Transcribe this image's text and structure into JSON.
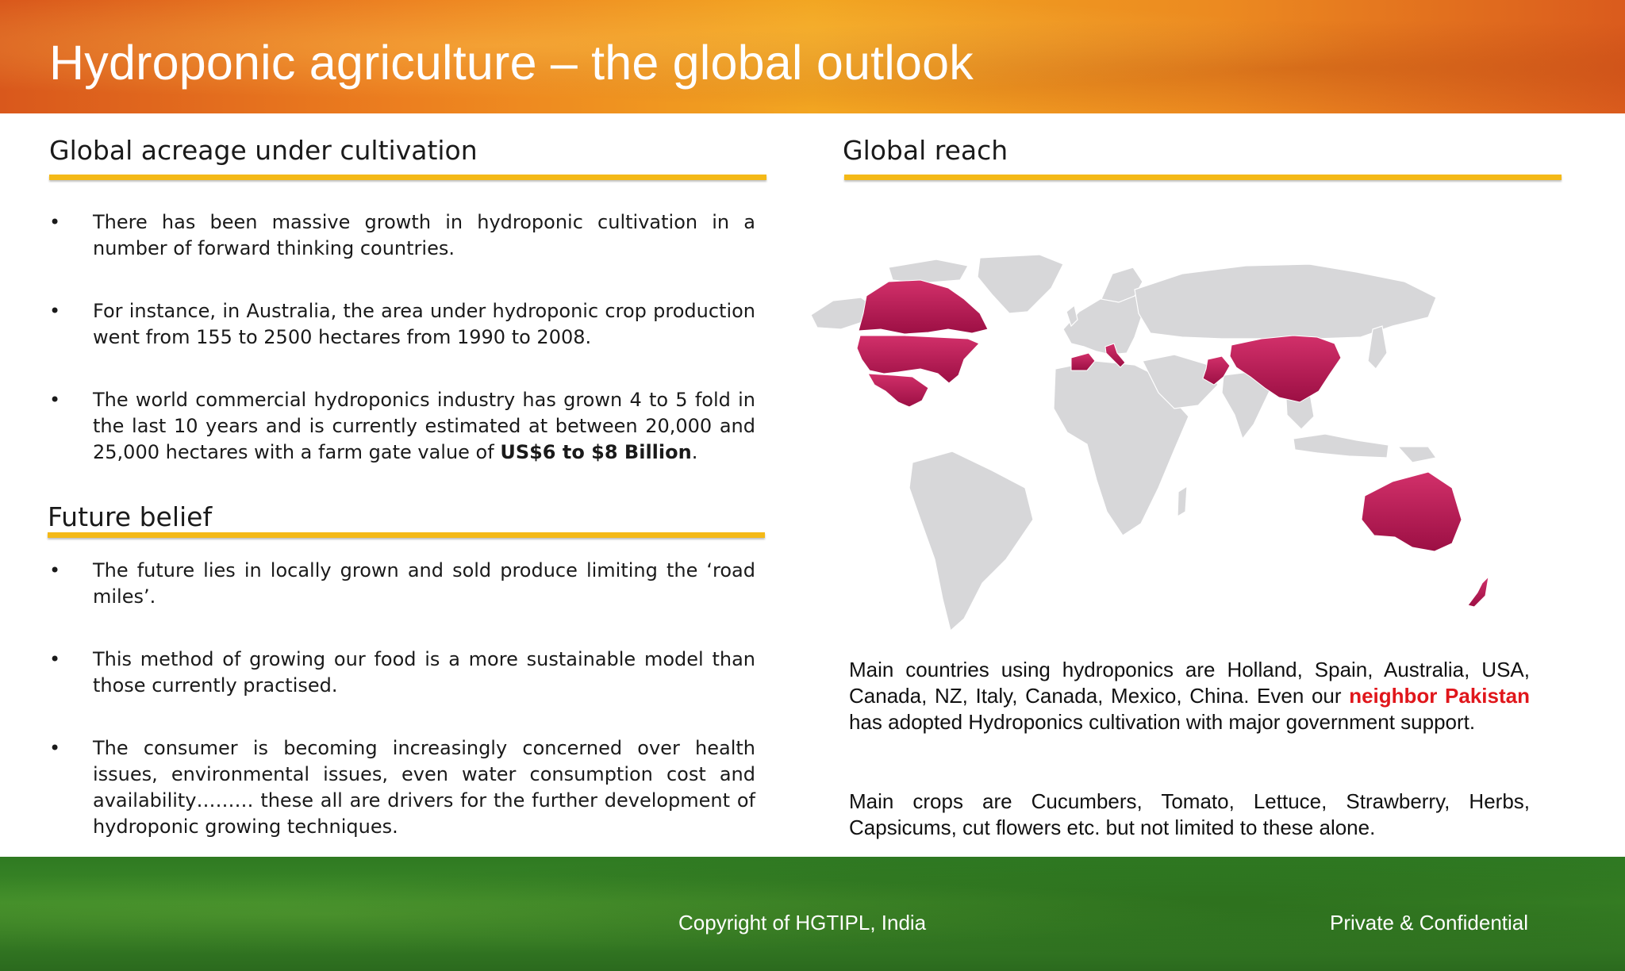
{
  "header": {
    "title": "Hydroponic agriculture – the global outlook"
  },
  "left": {
    "section1": {
      "title": "Global acreage under cultivation",
      "bullets": [
        "There has been massive growth in hydroponic cultivation in a number of forward thinking countries.",
        "For instance, in Australia, the area under hydroponic crop production went from 155 to 2500 hectares from 1990 to 2008.",
        "The world commercial hydroponics industry has grown 4 to 5 fold in the last 10 years and is currently estimated at between 20,000 and 25,000 hectares with a farm gate value of "
      ],
      "bullet3_bold": "US$6 to $8 Billion",
      "bullet3_end": "."
    },
    "section2": {
      "title": "Future belief",
      "bullets": [
        "The future lies in locally grown and sold produce limiting the ‘road miles’.",
        "This method of growing our food is a more sustainable model than those currently practised.",
        "The consumer is becoming increasingly concerned over health issues, environmental issues, even water consumption cost and availability……… these all are drivers for the further development of hydroponic growing techniques."
      ]
    }
  },
  "right": {
    "title": "Global reach",
    "para1_start": "Main countries using hydroponics are Holland, Spain, Australia, USA, Canada, NZ, Italy, Canada, Mexico, China. Even our ",
    "para1_highlight": "neighbor Pakistan",
    "para1_end": " has adopted Hydroponics cultivation with major government support.",
    "para2": "Main crops are Cucumbers, Tomato, Lettuce, Strawberry, Herbs, Capsicums, cut flowers etc. but not limited to these alone."
  },
  "map": {
    "highlighted_countries": [
      "Canada",
      "USA",
      "Mexico",
      "Spain",
      "Italy",
      "Pakistan",
      "China",
      "Australia",
      "New Zealand"
    ],
    "highlight_color": "#b5124d",
    "land_color": "#d7d7d9"
  },
  "footer": {
    "copyright": "Copyright of HGTIPL, India",
    "confidential": "Private & Confidential"
  },
  "colors": {
    "rule": "#f4b917",
    "header": "#ec8a20",
    "footer": "#2f7a22"
  }
}
